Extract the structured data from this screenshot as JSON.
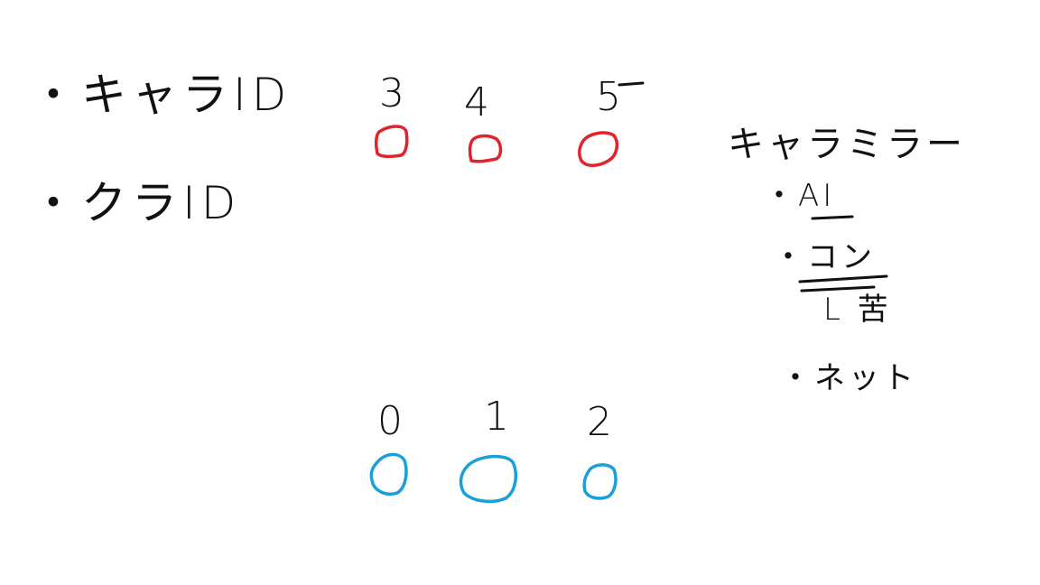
{
  "left_labels": [
    {
      "text": "・キャラID"
    },
    {
      "text": "・クラID"
    }
  ],
  "top_row": {
    "color": "#e0242a",
    "slots": [
      {
        "label": "3"
      },
      {
        "label": "4"
      },
      {
        "label": "5"
      }
    ]
  },
  "bottom_row": {
    "color": "#1a9fd8",
    "slots": [
      {
        "label": "0"
      },
      {
        "label": "1"
      },
      {
        "label": "2"
      }
    ]
  },
  "right_panel": {
    "heading": "キャラミラー",
    "items": [
      {
        "text": "・AI"
      },
      {
        "text": "・コン"
      },
      {
        "text": "L 苦"
      },
      {
        "text": "・ネット"
      }
    ]
  }
}
